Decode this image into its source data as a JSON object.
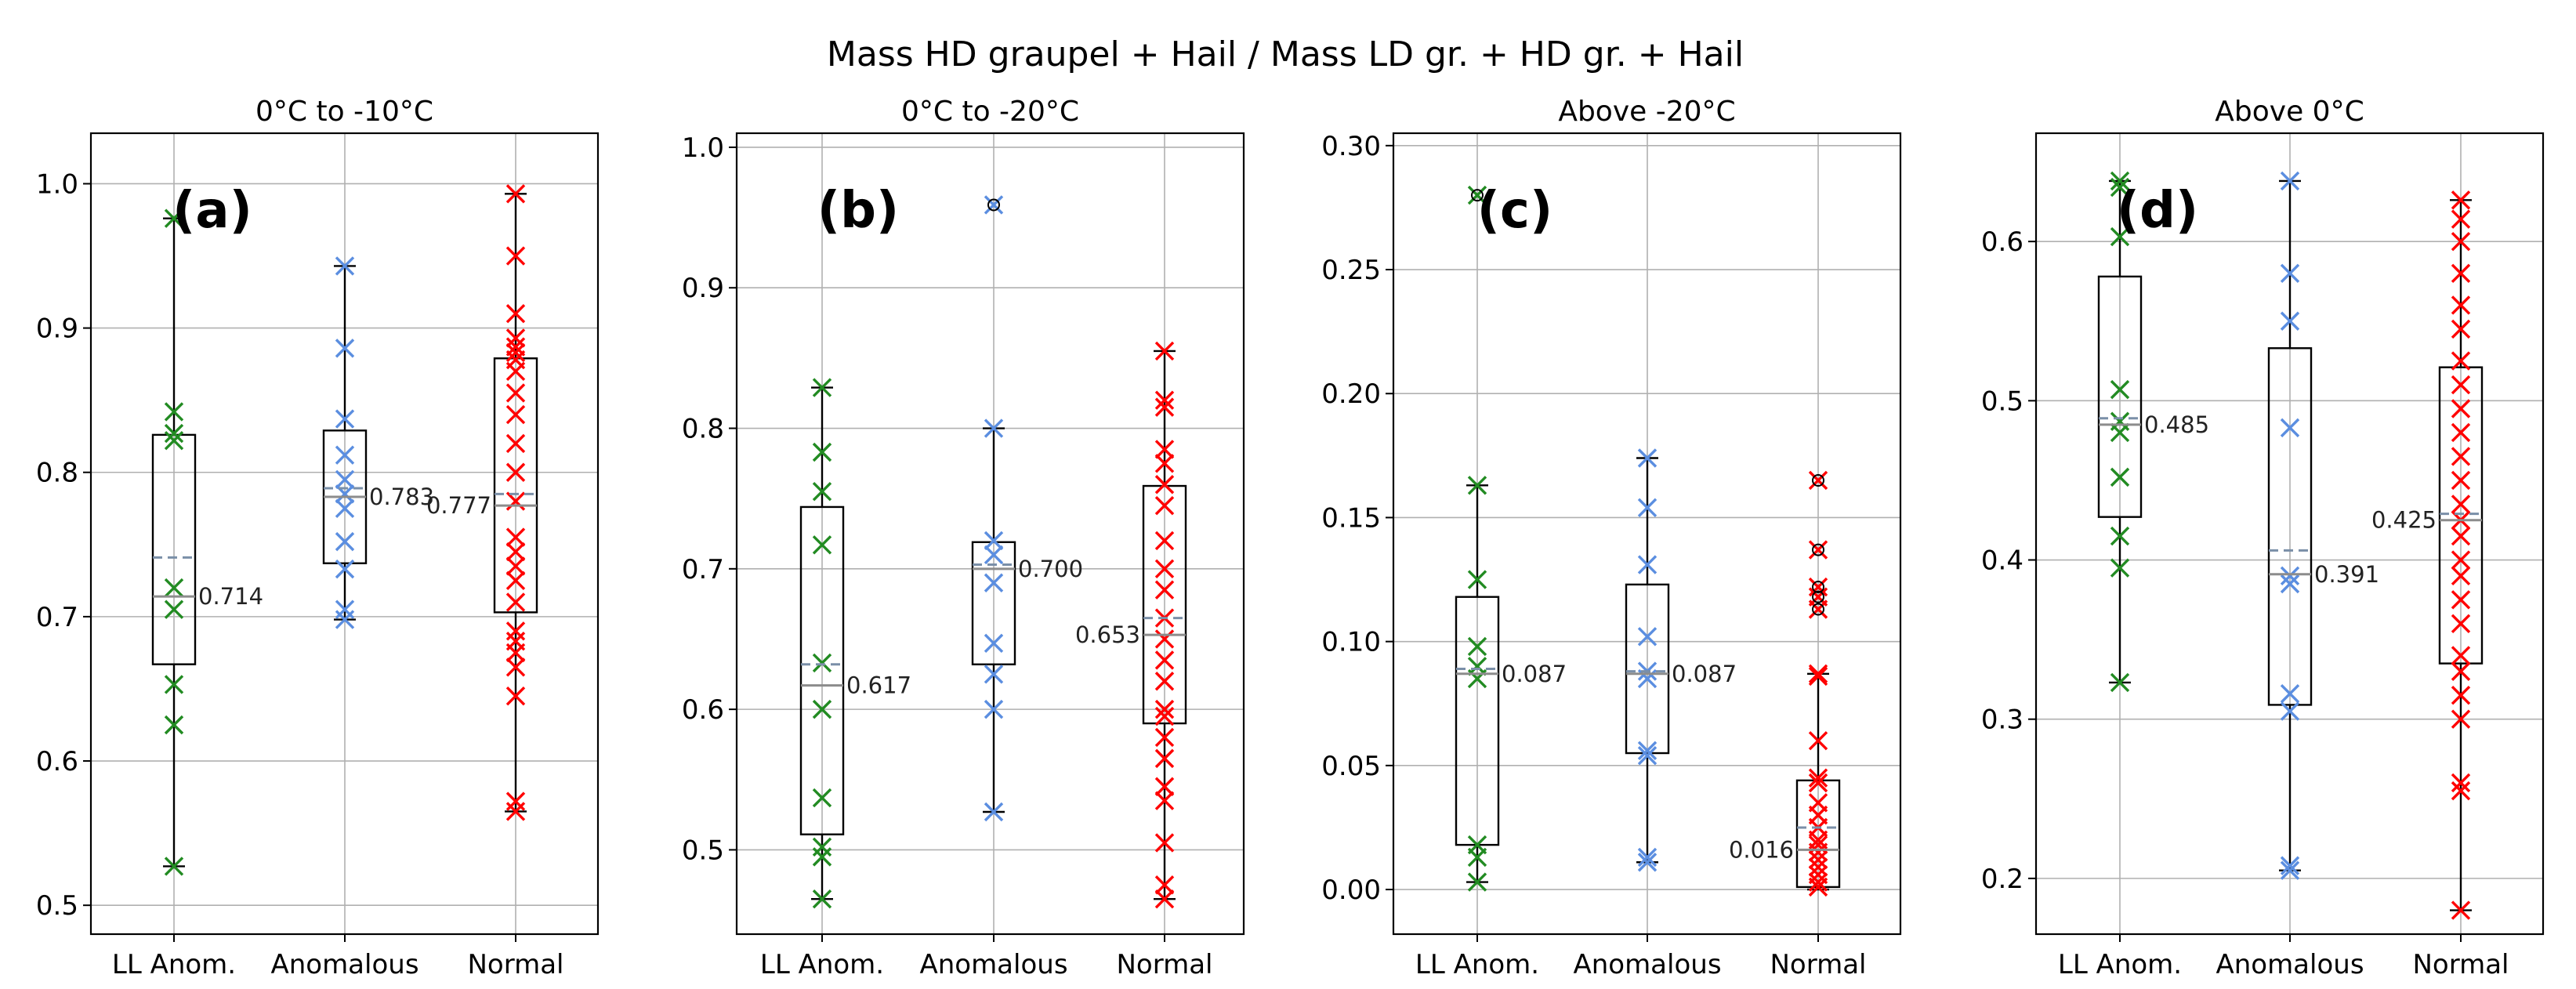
{
  "figure": {
    "suptitle": "Mass HD graupel + Hail / Mass LD gr. + HD gr. + Hail",
    "colors": {
      "LL Anom.": "#228b22",
      "Anomalous": "#5b8ee0",
      "Normal": "#ff0000"
    }
  },
  "chart_data": [
    {
      "type": "box",
      "panel_label": "(a)",
      "title": "0°C to -10°C",
      "categories": [
        "LL Anom.",
        "Anomalous",
        "Normal"
      ],
      "ylim": [
        0.48,
        1.035
      ],
      "yticks": [
        0.5,
        0.6,
        0.7,
        0.8,
        0.9,
        1.0
      ],
      "ytick_labels": [
        "0.5",
        "0.6",
        "0.7",
        "0.8",
        "0.9",
        "1.0"
      ],
      "series": [
        {
          "name": "LL Anom.",
          "points": [
            0.976,
            0.842,
            0.827,
            0.822,
            0.72,
            0.705,
            0.653,
            0.625,
            0.527
          ],
          "q1": 0.667,
          "median": 0.714,
          "q3": 0.826,
          "mean": 0.741,
          "whisker_low": 0.527,
          "whisker_high": 0.976,
          "label": "0.714",
          "label_side": "right",
          "fliers": []
        },
        {
          "name": "Anomalous",
          "points": [
            0.943,
            0.886,
            0.837,
            0.812,
            0.795,
            0.785,
            0.775,
            0.752,
            0.733,
            0.705,
            0.698
          ],
          "q1": 0.737,
          "median": 0.783,
          "q3": 0.829,
          "mean": 0.789,
          "whisker_low": 0.698,
          "whisker_high": 0.943,
          "label": "0.783",
          "label_side": "right",
          "fliers": []
        },
        {
          "name": "Normal",
          "points": [
            0.993,
            0.95,
            0.91,
            0.893,
            0.887,
            0.883,
            0.878,
            0.87,
            0.855,
            0.84,
            0.82,
            0.8,
            0.78,
            0.755,
            0.745,
            0.735,
            0.725,
            0.71,
            0.69,
            0.683,
            0.675,
            0.665,
            0.645,
            0.572,
            0.565
          ],
          "q1": 0.703,
          "median": 0.777,
          "q3": 0.879,
          "mean": 0.785,
          "whisker_low": 0.565,
          "whisker_high": 0.993,
          "label": "0.777",
          "label_side": "left",
          "fliers": []
        }
      ]
    },
    {
      "type": "box",
      "panel_label": "(b)",
      "title": "0°C to -20°C",
      "categories": [
        "LL Anom.",
        "Anomalous",
        "Normal"
      ],
      "ylim": [
        0.44,
        1.01
      ],
      "yticks": [
        0.5,
        0.6,
        0.7,
        0.8,
        0.9,
        1.0
      ],
      "ytick_labels": [
        "0.5",
        "0.6",
        "0.7",
        "0.8",
        "0.9",
        "1.0"
      ],
      "series": [
        {
          "name": "LL Anom.",
          "points": [
            0.829,
            0.783,
            0.755,
            0.717,
            0.633,
            0.6,
            0.537,
            0.502,
            0.495,
            0.465
          ],
          "q1": 0.511,
          "median": 0.617,
          "q3": 0.744,
          "mean": 0.632,
          "whisker_low": 0.465,
          "whisker_high": 0.829,
          "label": "0.617",
          "label_side": "right",
          "fliers": []
        },
        {
          "name": "Anomalous",
          "points": [
            0.959,
            0.8,
            0.72,
            0.71,
            0.69,
            0.647,
            0.625,
            0.6,
            0.527
          ],
          "q1": 0.632,
          "median": 0.7,
          "q3": 0.719,
          "mean": 0.703,
          "whisker_low": 0.527,
          "whisker_high": 0.8,
          "label": "0.700",
          "label_side": "right",
          "fliers": [
            0.959
          ]
        },
        {
          "name": "Normal",
          "points": [
            0.855,
            0.82,
            0.815,
            0.785,
            0.775,
            0.76,
            0.745,
            0.72,
            0.7,
            0.685,
            0.665,
            0.65,
            0.635,
            0.62,
            0.6,
            0.595,
            0.58,
            0.565,
            0.545,
            0.535,
            0.505,
            0.475,
            0.465
          ],
          "q1": 0.59,
          "median": 0.653,
          "q3": 0.759,
          "mean": 0.665,
          "whisker_low": 0.465,
          "whisker_high": 0.855,
          "label": "0.653",
          "label_side": "left",
          "fliers": []
        }
      ]
    },
    {
      "type": "box",
      "panel_label": "(c)",
      "title": "Above -20°C",
      "categories": [
        "LL Anom.",
        "Anomalous",
        "Normal"
      ],
      "ylim": [
        -0.018,
        0.305
      ],
      "yticks": [
        0.0,
        0.05,
        0.1,
        0.15,
        0.2,
        0.25,
        0.3
      ],
      "ytick_labels": [
        "0.00",
        "0.05",
        "0.10",
        "0.15",
        "0.20",
        "0.25",
        "0.30"
      ],
      "series": [
        {
          "name": "LL Anom.",
          "points": [
            0.28,
            0.163,
            0.125,
            0.098,
            0.09,
            0.085,
            0.018,
            0.013,
            0.003
          ],
          "q1": 0.018,
          "median": 0.087,
          "q3": 0.118,
          "mean": 0.089,
          "whisker_low": 0.003,
          "whisker_high": 0.163,
          "label": "0.087",
          "label_side": "right",
          "fliers": [
            0.28
          ]
        },
        {
          "name": "Anomalous",
          "points": [
            0.174,
            0.154,
            0.131,
            0.102,
            0.088,
            0.085,
            0.056,
            0.054,
            0.013,
            0.011
          ],
          "q1": 0.055,
          "median": 0.087,
          "q3": 0.123,
          "mean": 0.088,
          "whisker_low": 0.011,
          "whisker_high": 0.174,
          "label": "0.087",
          "label_side": "right",
          "fliers": []
        },
        {
          "name": "Normal",
          "points": [
            0.165,
            0.137,
            0.122,
            0.118,
            0.113,
            0.087,
            0.086,
            0.06,
            0.045,
            0.043,
            0.035,
            0.03,
            0.025,
            0.02,
            0.018,
            0.015,
            0.012,
            0.009,
            0.006,
            0.003,
            0.001
          ],
          "q1": 0.001,
          "median": 0.016,
          "q3": 0.044,
          "mean": 0.025,
          "whisker_low": 0.0,
          "whisker_high": 0.087,
          "label": "0.016",
          "label_side": "left",
          "fliers": [
            0.165,
            0.137,
            0.122,
            0.118,
            0.113
          ]
        }
      ]
    },
    {
      "type": "box",
      "panel_label": "(d)",
      "title": "Above 0°C",
      "categories": [
        "LL Anom.",
        "Anomalous",
        "Normal"
      ],
      "ylim": [
        0.165,
        0.668
      ],
      "yticks": [
        0.2,
        0.3,
        0.4,
        0.5,
        0.6
      ],
      "ytick_labels": [
        "0.2",
        "0.3",
        "0.4",
        "0.5",
        "0.6"
      ],
      "series": [
        {
          "name": "LL Anom.",
          "points": [
            0.638,
            0.634,
            0.603,
            0.507,
            0.487,
            0.48,
            0.452,
            0.415,
            0.395,
            0.323
          ],
          "q1": 0.427,
          "median": 0.485,
          "q3": 0.578,
          "mean": 0.489,
          "whisker_low": 0.323,
          "whisker_high": 0.638,
          "label": "0.485",
          "label_side": "right",
          "fliers": []
        },
        {
          "name": "Anomalous",
          "points": [
            0.638,
            0.58,
            0.55,
            0.483,
            0.39,
            0.385,
            0.316,
            0.305,
            0.208,
            0.205
          ],
          "q1": 0.309,
          "median": 0.391,
          "q3": 0.533,
          "mean": 0.406,
          "whisker_low": 0.205,
          "whisker_high": 0.638,
          "label": "0.391",
          "label_side": "right",
          "fliers": []
        },
        {
          "name": "Normal",
          "points": [
            0.626,
            0.614,
            0.6,
            0.58,
            0.56,
            0.545,
            0.525,
            0.51,
            0.495,
            0.48,
            0.465,
            0.45,
            0.435,
            0.425,
            0.415,
            0.4,
            0.39,
            0.375,
            0.36,
            0.34,
            0.33,
            0.315,
            0.3,
            0.26,
            0.255,
            0.18
          ],
          "q1": 0.335,
          "median": 0.425,
          "q3": 0.521,
          "mean": 0.429,
          "whisker_low": 0.18,
          "whisker_high": 0.626,
          "label": "0.425",
          "label_side": "left",
          "fliers": []
        }
      ]
    }
  ]
}
